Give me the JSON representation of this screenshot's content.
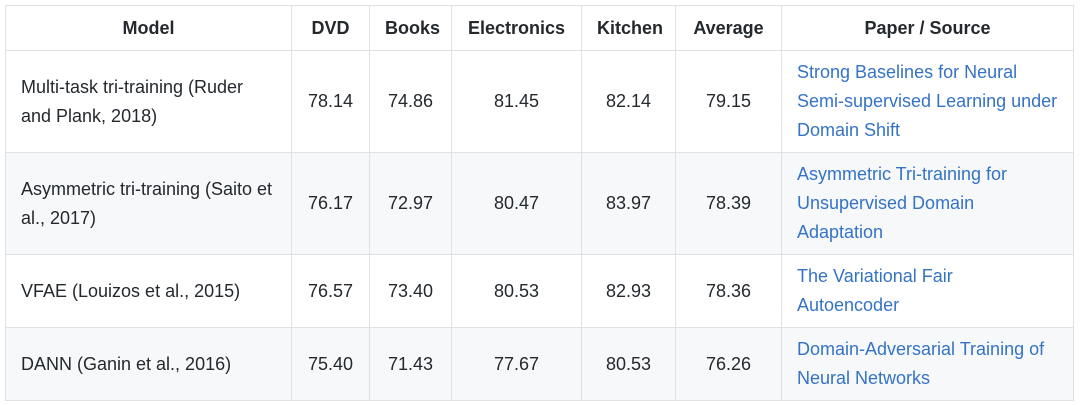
{
  "headers": [
    "Model",
    "DVD",
    "Books",
    "Electronics",
    "Kitchen",
    "Average",
    "Paper / Source"
  ],
  "rows": [
    {
      "model": "Multi-task tri-training (Ruder and Plank, 2018)",
      "dvd": "78.14",
      "books": "74.86",
      "electronics": "81.45",
      "kitchen": "82.14",
      "average": "79.15",
      "source": "Strong Baselines for Neural Semi-supervised Learning under Domain Shift"
    },
    {
      "model": "Asymmetric tri-training (Saito et al., 2017)",
      "dvd": "76.17",
      "books": "72.97",
      "electronics": "80.47",
      "kitchen": "83.97",
      "average": "78.39",
      "source": "Asymmetric Tri-training for Unsupervised Domain Adaptation"
    },
    {
      "model": "VFAE (Louizos et al., 2015)",
      "dvd": "76.57",
      "books": "73.40",
      "electronics": "80.53",
      "kitchen": "82.93",
      "average": "78.36",
      "source": "The Variational Fair Autoencoder"
    },
    {
      "model": "DANN (Ganin et al., 2016)",
      "dvd": "75.40",
      "books": "71.43",
      "electronics": "77.67",
      "kitchen": "80.53",
      "average": "76.26",
      "source": "Domain-Adversarial Training of Neural Networks"
    }
  ],
  "colors": {
    "link": "#3573c5",
    "border": "#dfe2e5",
    "stripe": "#f6f8fa"
  }
}
